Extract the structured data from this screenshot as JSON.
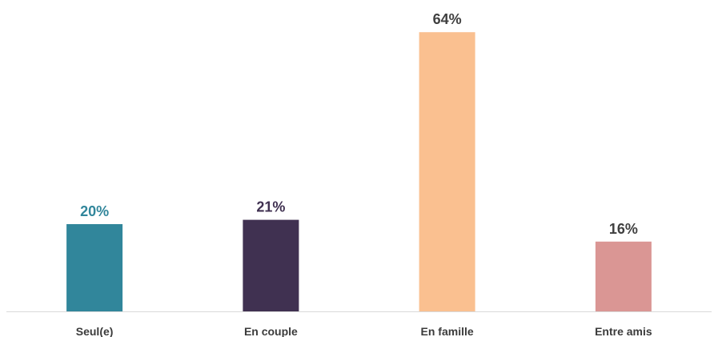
{
  "chart_data": {
    "type": "bar",
    "title": "",
    "xlabel": "",
    "ylabel": "",
    "ylim": [
      0,
      70
    ],
    "grid": false,
    "legend": "none",
    "categories": [
      "Seul(e)",
      "En couple",
      "En famille",
      "Entre amis"
    ],
    "values": [
      20,
      21,
      64,
      16
    ],
    "value_labels": [
      "20%",
      "21%",
      "64%",
      "16%"
    ],
    "bar_colors": [
      "#31869B",
      "#403151",
      "#FAC090",
      "#DA9694"
    ],
    "label_colors": [
      "#31869B",
      "#403151",
      "#404040",
      "#404040"
    ],
    "baseline_color": "#D9D9D9"
  }
}
